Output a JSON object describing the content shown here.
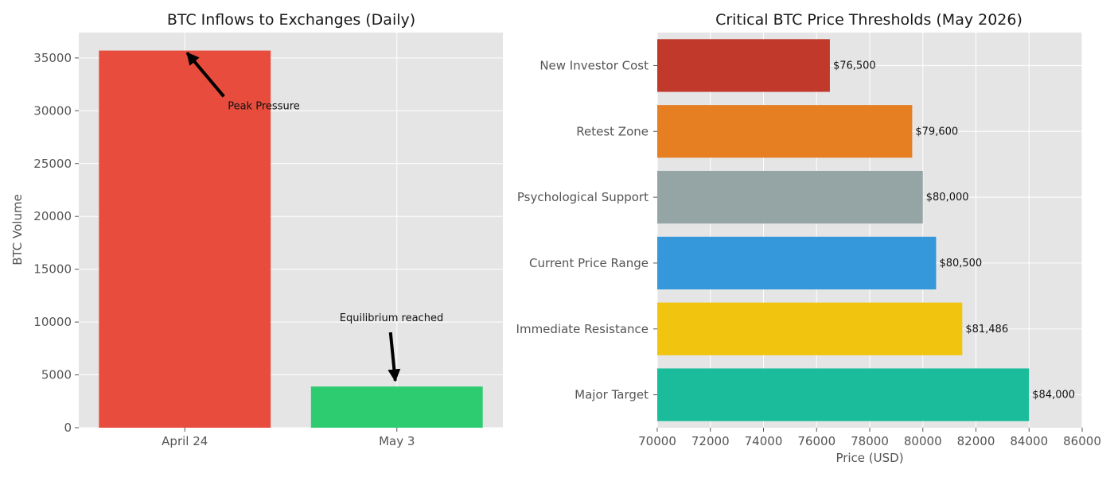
{
  "chart_data": [
    {
      "type": "bar",
      "title": "BTC Inflows to Exchanges (Daily)",
      "xlabel": "",
      "ylabel": "BTC Volume",
      "categories": [
        "April 24",
        "May 3"
      ],
      "values": [
        35700,
        3900
      ],
      "colors": [
        "#e74c3c",
        "#2ecc71"
      ],
      "ylim": [
        0,
        37400
      ],
      "yticks": [
        0,
        5000,
        10000,
        15000,
        20000,
        25000,
        30000,
        35000
      ],
      "grid": true,
      "annotations": [
        {
          "text": "Peak Pressure",
          "text_at": {
            "category": "April 24",
            "y": 30000
          },
          "arrow_to": {
            "category": "April 24",
            "y": 35700
          }
        },
        {
          "text": "Equilibrium reached",
          "text_at": {
            "category": "May 3",
            "y": 10000
          },
          "arrow_to": {
            "category": "May 3",
            "y": 4300
          }
        }
      ]
    },
    {
      "type": "bar",
      "orientation": "horizontal",
      "title": "Critical BTC Price Thresholds (May 2026)",
      "xlabel": "Price (USD)",
      "ylabel": "",
      "categories": [
        "New Investor Cost",
        "Retest Zone",
        "Psychological Support",
        "Current Price Range",
        "Immediate Resistance",
        "Major Target"
      ],
      "values": [
        76500,
        79600,
        80000,
        80500,
        81486,
        84000
      ],
      "labels": [
        "$76,500",
        "$79,600",
        "$80,000",
        "$80,500",
        "$81,486",
        "$84,000"
      ],
      "colors": [
        "#c0392b",
        "#e67e22",
        "#95a5a6",
        "#3498db",
        "#f1c40f",
        "#1abc9c"
      ],
      "xlim": [
        70000,
        86000
      ],
      "xticks": [
        70000,
        72000,
        74000,
        76000,
        78000,
        80000,
        82000,
        84000,
        86000
      ],
      "grid": true
    }
  ]
}
